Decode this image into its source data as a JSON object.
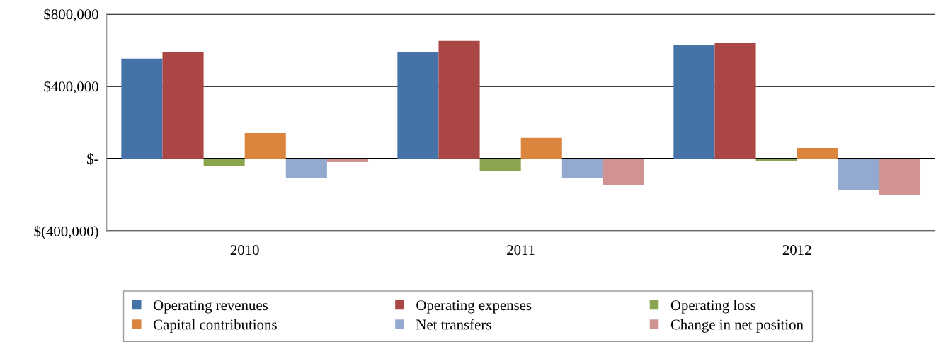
{
  "chart_data": {
    "type": "bar",
    "categories": [
      "2010",
      "2011",
      "2012"
    ],
    "series": [
      {
        "name": "Operating revenues",
        "color": "#4572a7",
        "values": [
          553000,
          588000,
          631000
        ]
      },
      {
        "name": "Operating expenses",
        "color": "#aa4643",
        "values": [
          588000,
          651000,
          639000
        ]
      },
      {
        "name": "Operating loss",
        "color": "#89a54e",
        "values": [
          -43000,
          -67000,
          -12000
        ]
      },
      {
        "name": "Capital contributions",
        "color": "#db843d",
        "values": [
          141000,
          114000,
          59000
        ]
      },
      {
        "name": "Net transfers",
        "color": "#93a9cf",
        "values": [
          -110000,
          -110000,
          -173000
        ]
      },
      {
        "name": "Change in net position",
        "color": "#d19392",
        "values": [
          -20000,
          -145000,
          -204000
        ]
      }
    ],
    "ylim": [
      -400000,
      800000
    ],
    "yticks": [
      {
        "value": -400000,
        "label": "$(400,000)"
      },
      {
        "value": 0,
        "label": "$-"
      },
      {
        "value": 400000,
        "label": "$400,000"
      },
      {
        "value": 800000,
        "label": "$800,000"
      }
    ],
    "grid": "y",
    "legend": "bottom"
  }
}
